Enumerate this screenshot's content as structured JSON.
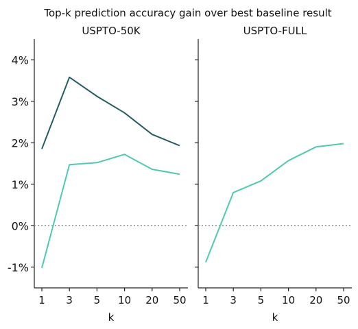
{
  "figure": {
    "title": "Top-k prediction accuracy gain over best baseline result"
  },
  "chart_data": [
    {
      "type": "line",
      "title": "USPTO-50K",
      "xlabel": "k",
      "ylabel": "",
      "categories": [
        "1",
        "3",
        "5",
        "10",
        "20",
        "50"
      ],
      "ylim": [
        -1.5,
        4.5
      ],
      "yticks": [
        "-1%",
        "0%",
        "1%",
        "2%",
        "3%",
        "4%"
      ],
      "ytick_values": [
        -1,
        0,
        1,
        2,
        3,
        4
      ],
      "reference_line": {
        "y": 0,
        "style": "dotted",
        "color": "#888888"
      },
      "series": [
        {
          "color": "#245b63",
          "values": [
            1.85,
            3.58,
            3.12,
            2.72,
            2.2,
            1.93
          ]
        },
        {
          "color": "#4fc9b0",
          "values": [
            -1.02,
            1.47,
            1.52,
            1.72,
            1.36,
            1.24
          ]
        }
      ]
    },
    {
      "type": "line",
      "title": "USPTO-FULL",
      "xlabel": "k",
      "ylabel": "",
      "categories": [
        "1",
        "3",
        "5",
        "10",
        "20",
        "50"
      ],
      "ylim": [
        -1.5,
        4.5
      ],
      "shared_y": true,
      "reference_line": {
        "y": 0,
        "style": "dotted",
        "color": "#888888"
      },
      "series": [
        {
          "color": "#4fc9b0",
          "values": [
            -0.88,
            0.8,
            1.08,
            1.57,
            1.9,
            1.98
          ]
        }
      ]
    }
  ]
}
